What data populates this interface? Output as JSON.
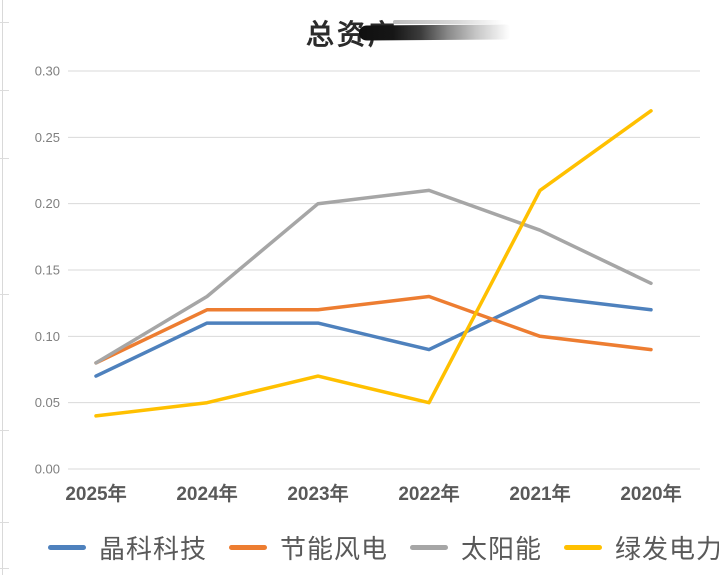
{
  "title": {
    "text": "总资产"
  },
  "chart_data": {
    "type": "line",
    "title": "总资产",
    "categories": [
      "2025年",
      "2024年",
      "2023年",
      "2022年",
      "2021年",
      "2020年"
    ],
    "series": [
      {
        "name": "晶科科技",
        "color": "#4E81BD",
        "values": [
          0.07,
          0.11,
          0.11,
          0.09,
          0.13,
          0.12
        ]
      },
      {
        "name": "节能风电",
        "color": "#ED7D31",
        "values": [
          0.08,
          0.12,
          0.12,
          0.13,
          0.1,
          0.09
        ]
      },
      {
        "name": "太阳能",
        "color": "#A6A6A6",
        "values": [
          0.08,
          0.13,
          0.2,
          0.21,
          0.18,
          0.14
        ]
      },
      {
        "name": "绿发电力",
        "color": "#FFC000",
        "values": [
          0.04,
          0.05,
          0.07,
          0.05,
          0.21,
          0.27
        ]
      }
    ],
    "ylim": [
      0,
      0.3
    ],
    "ytick_step": 0.05,
    "ytick_labels": [
      "0.00",
      "0.05",
      "0.10",
      "0.15",
      "0.20",
      "0.25",
      "0.30"
    ],
    "xlabel": "",
    "ylabel": "",
    "grid": true,
    "legend_position": "bottom"
  },
  "colors": {
    "gridline": "#d9d9d9",
    "ytick_text": "#7f7f7f",
    "xtick_text": "#595959",
    "legend_text": "#595959",
    "title_text": "#2b2b2b",
    "background": "#ffffff"
  }
}
